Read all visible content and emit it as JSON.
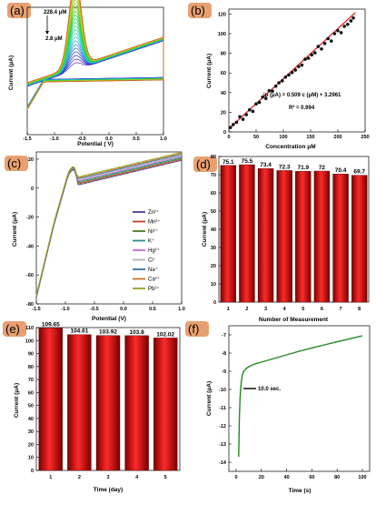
{
  "colors": {
    "letter_box": "#e8a070",
    "bar_dark": "#8b0000",
    "bar_light": "#ff2a2a",
    "fit_line": "#e03030",
    "points": "#111111",
    "stability_line": "#1f8a1f"
  },
  "chart_data": [
    {
      "panel": "(a)",
      "type": "line",
      "xlabel": "Potential ( V)",
      "ylabel": "Current (μA)",
      "xlim": [
        -1.5,
        1.0
      ],
      "x_ticks": [
        "-1.5",
        "-1.0",
        "-0.5",
        "0.0",
        "0.5",
        "1.0"
      ],
      "annotations": [
        "228.4 μM",
        "2.8 μM"
      ],
      "peak_potential": -0.62,
      "series_count": 24
    },
    {
      "panel": "(b)",
      "type": "scatter",
      "xlabel": "Concentration μM",
      "ylabel": "Current (μA)",
      "xlim": [
        0,
        250
      ],
      "ylim": [
        0,
        125
      ],
      "x_ticks": [
        "0",
        "50",
        "100",
        "150",
        "200",
        "250"
      ],
      "y_ticks": [
        "0",
        "20",
        "40",
        "60",
        "80",
        "100",
        "120"
      ],
      "equation": "ip (μA) = 0.509 c (μM) + 3.2961",
      "r_squared": "R² = 0.994",
      "fit": {
        "slope": 0.509,
        "intercept": 3.2961
      },
      "x": [
        2.8,
        8,
        14,
        20,
        26,
        32,
        38,
        44,
        50,
        56,
        62,
        68,
        74,
        80,
        86,
        92,
        98,
        104,
        110,
        116,
        122,
        128,
        134,
        140,
        146,
        152,
        158,
        164,
        170,
        176,
        182,
        188,
        194,
        200,
        206,
        212,
        218,
        224,
        228.4
      ],
      "y": [
        4.5,
        7.5,
        9.8,
        15.5,
        12.8,
        17.5,
        22.5,
        21,
        28.5,
        30,
        35.5,
        34,
        42,
        41.5,
        46.5,
        50,
        52,
        55.8,
        58,
        60.5,
        63,
        66.5,
        68,
        74,
        75,
        78.5,
        80.5,
        87,
        84.5,
        90,
        95,
        92.5,
        100,
        103,
        101,
        107.5,
        109.5,
        113,
        116
      ]
    },
    {
      "panel": "(c)",
      "type": "line",
      "xlabel": "Potential (V)",
      "ylabel": "Current (μA)",
      "xlim": [
        -1.5,
        1.0
      ],
      "ylim": [
        -80,
        25
      ],
      "x_ticks": [
        "-1.5",
        "-1.0",
        "-0.5",
        "0.0",
        "0.5",
        "1.0"
      ],
      "y_ticks": [
        "20",
        "0",
        "-20",
        "-40",
        "-60",
        "-80"
      ],
      "legend": [
        {
          "label": "Zn²⁺",
          "color": "#4b3b8c"
        },
        {
          "label": "Mn²⁺",
          "color": "#b5451b"
        },
        {
          "label": "Ni²⁺",
          "color": "#4a7a2a"
        },
        {
          "label": "K⁺",
          "color": "#2e8b8b"
        },
        {
          "label": "Hg²⁺",
          "color": "#c46ad1"
        },
        {
          "label": "Cl⁻",
          "color": "#b3b3b3"
        },
        {
          "label": "Na⁺",
          "color": "#2f6fa8"
        },
        {
          "label": "Ca²⁺",
          "color": "#c8741e"
        },
        {
          "label": "Pb²⁺",
          "color": "#9aa31c"
        }
      ]
    },
    {
      "panel": "(d)",
      "type": "bar",
      "xlabel": "Number of Measurement",
      "ylabel": "Current (μA)",
      "ylim": [
        0,
        80
      ],
      "y_ticks": [
        "0",
        "10",
        "20",
        "30",
        "40",
        "50",
        "60",
        "70",
        "80"
      ],
      "categories": [
        "1",
        "2",
        "3",
        "4",
        "5",
        "6",
        "7",
        "8"
      ],
      "values": [
        75.1,
        75.5,
        73.4,
        72.3,
        71.9,
        72,
        70.4,
        69.7
      ],
      "labels": [
        "75.1",
        "75.5",
        "73.4",
        "72.3",
        "71.9",
        "72",
        "70.4",
        "69.7"
      ]
    },
    {
      "panel": "(e)",
      "type": "bar",
      "xlabel": "Time (day)",
      "ylabel": "Current (μA)",
      "ylim": [
        0,
        110
      ],
      "y_ticks": [
        "0",
        "10",
        "20",
        "30",
        "40",
        "50",
        "60",
        "70",
        "80",
        "90",
        "100",
        "110"
      ],
      "categories": [
        "1",
        "2",
        "3",
        "4",
        "5"
      ],
      "values": [
        109.65,
        104.61,
        103.92,
        103.8,
        102.02
      ],
      "labels": [
        "109.65",
        "104.61",
        "103.92",
        "103.8",
        "102.02"
      ]
    },
    {
      "panel": "(f)",
      "type": "line",
      "xlabel": "Time (s)",
      "ylabel": "Current (μA)",
      "xlim": [
        0,
        100
      ],
      "ylim": [
        -14.5,
        -6.5
      ],
      "x_ticks": [
        "0",
        "20",
        "40",
        "60",
        "80",
        "100"
      ],
      "y_ticks": [
        "-7",
        "-8",
        "-9",
        "-10",
        "-11",
        "-12",
        "-13",
        "-14"
      ],
      "annotation": "10.0 sec.",
      "x": [
        2,
        2.6,
        3.2,
        4,
        5,
        6,
        8,
        10,
        13,
        16,
        20,
        30,
        40,
        50,
        60,
        70,
        80,
        90,
        100
      ],
      "y": [
        -13.7,
        -11.5,
        -10.4,
        -9.6,
        -9.2,
        -9.0,
        -8.85,
        -8.75,
        -8.65,
        -8.58,
        -8.5,
        -8.3,
        -8.1,
        -7.9,
        -7.72,
        -7.55,
        -7.38,
        -7.22,
        -7.05
      ]
    }
  ]
}
